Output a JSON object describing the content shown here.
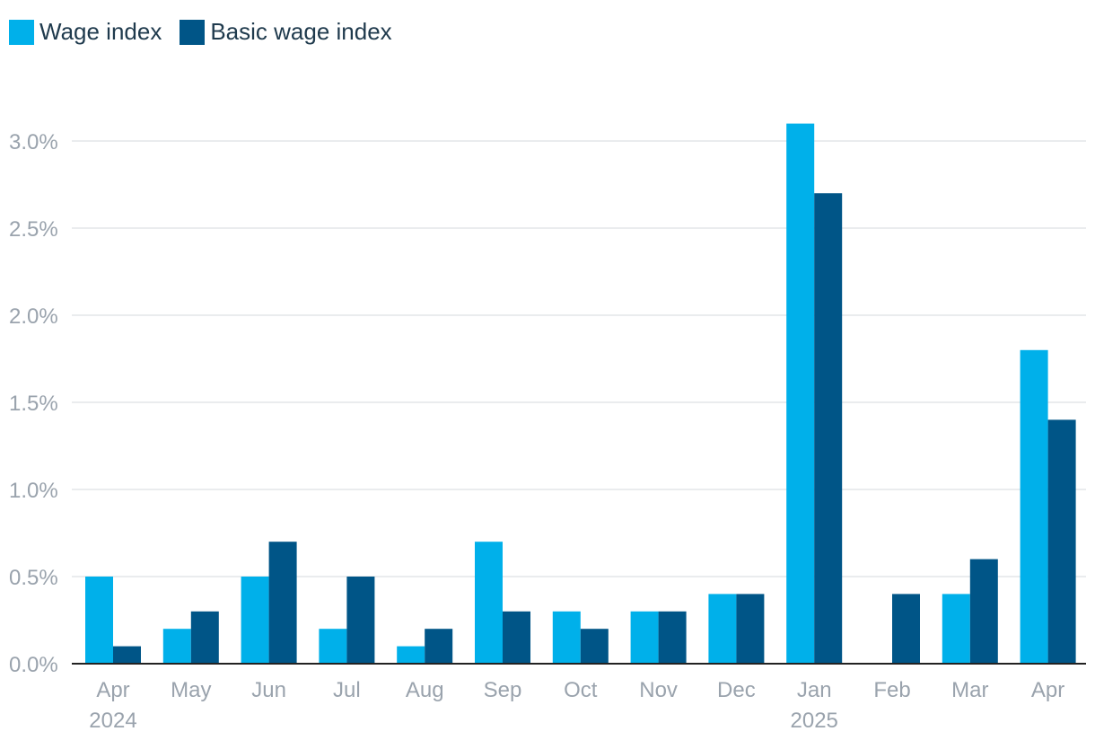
{
  "chart_data": {
    "type": "bar",
    "categories": [
      "Apr",
      "May",
      "Jun",
      "Jul",
      "Aug",
      "Sep",
      "Oct",
      "Nov",
      "Dec",
      "Jan",
      "Feb",
      "Mar",
      "Apr"
    ],
    "year_labels": [
      "2024",
      "",
      "",
      "",
      "",
      "",
      "",
      "",
      "",
      "2025",
      "",
      "",
      ""
    ],
    "series": [
      {
        "name": "Wage index",
        "color": "#00b0ea",
        "values": [
          0.5,
          0.2,
          0.5,
          0.2,
          0.1,
          0.7,
          0.3,
          0.3,
          0.4,
          3.1,
          0.0,
          0.4,
          1.8
        ]
      },
      {
        "name": "Basic wage index",
        "color": "#005587",
        "values": [
          0.1,
          0.3,
          0.7,
          0.5,
          0.2,
          0.3,
          0.2,
          0.3,
          0.4,
          2.7,
          0.4,
          0.6,
          1.4
        ]
      }
    ],
    "y_ticks": [
      "0.0%",
      "0.5%",
      "1.0%",
      "1.5%",
      "2.0%",
      "2.5%",
      "3.0%"
    ],
    "y_tick_values": [
      0,
      0.5,
      1.0,
      1.5,
      2.0,
      2.5,
      3.0
    ],
    "ylim": [
      0,
      3.0
    ],
    "grid": true,
    "legend_position": "top-left"
  },
  "colors": {
    "grid": "#e3e6e9",
    "axis": "#222222",
    "tick_text": "#9aa3ad",
    "legend_text": "#1f3a4d"
  }
}
